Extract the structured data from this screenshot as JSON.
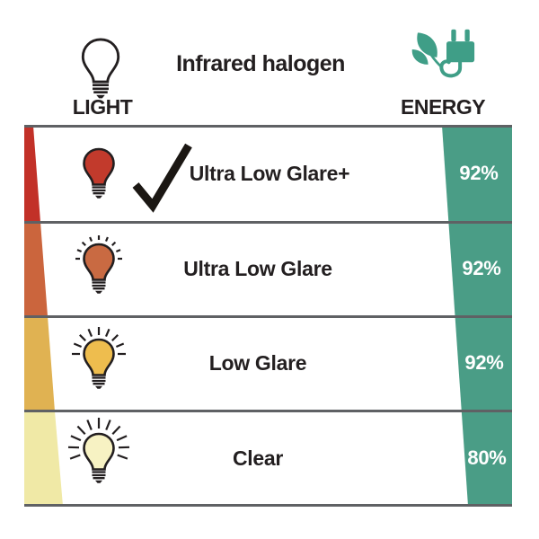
{
  "header": {
    "title": "Infrared halogen",
    "light_label": "LIGHT",
    "energy_label": "ENERGY"
  },
  "colors": {
    "teal": "#4a9d86",
    "text": "#231f20",
    "divider_gray": "#5f6164",
    "percent_text": "#ffffff"
  },
  "rows": [
    {
      "label": "Ultra Low Glare+",
      "energy": "92%",
      "checked": true,
      "rays": "none",
      "bulb_color": "#c23a2c",
      "wedge_color": "#c23128"
    },
    {
      "label": "Ultra Low Glare",
      "energy": "92%",
      "checked": false,
      "rays": "short",
      "bulb_color": "#c96a42",
      "wedge_color": "#cb653d"
    },
    {
      "label": "Low Glare",
      "energy": "92%",
      "checked": false,
      "rays": "medium",
      "bulb_color": "#eebd4e",
      "wedge_color": "#e0b252"
    },
    {
      "label": "Clear",
      "energy": "80%",
      "checked": false,
      "rays": "long",
      "bulb_color": "#f7f2c3",
      "wedge_color": "#f0e9a6"
    }
  ],
  "chart_data": {
    "type": "table",
    "title": "Infrared halogen",
    "columns": [
      "LIGHT",
      "ENERGY"
    ],
    "rows": [
      {
        "light": "Ultra Low Glare+",
        "energy_percent": 92,
        "selected": true
      },
      {
        "light": "Ultra Low Glare",
        "energy_percent": 92,
        "selected": false
      },
      {
        "light": "Low Glare",
        "energy_percent": 92,
        "selected": false
      },
      {
        "light": "Clear",
        "energy_percent": 80,
        "selected": false
      }
    ]
  }
}
